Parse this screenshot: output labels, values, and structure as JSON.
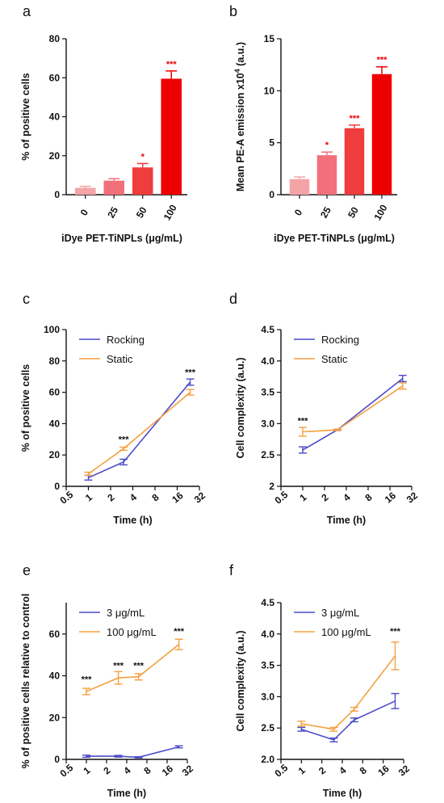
{
  "chart_data": [
    {
      "id": "a",
      "panel_label": "a",
      "type": "bar",
      "categories": [
        "0",
        "25",
        "50",
        "100"
      ],
      "values": [
        3.5,
        7.2,
        14,
        59.5
      ],
      "errors": [
        0.8,
        1.0,
        2.0,
        4.0
      ],
      "significance": [
        "",
        "",
        "*",
        "***"
      ],
      "bar_colors": [
        "#f4a3a6",
        "#f2707a",
        "#ef3c3c",
        "#ee0000"
      ],
      "ylabel": "% of positive cells",
      "xlabel": "iDye PET-TiNPLs (μg/mL)",
      "ylim": [
        0,
        80
      ],
      "yticks": [
        "0",
        "20",
        "40",
        "60",
        "80"
      ]
    },
    {
      "id": "b",
      "panel_label": "b",
      "type": "bar",
      "categories": [
        "0",
        "25",
        "50",
        "100"
      ],
      "values": [
        1.5,
        3.8,
        6.4,
        11.6
      ],
      "errors": [
        0.2,
        0.3,
        0.3,
        0.7
      ],
      "significance": [
        "",
        "*",
        "***",
        "***"
      ],
      "bar_colors": [
        "#f4a3a6",
        "#f2707a",
        "#ef3c3c",
        "#ee0000"
      ],
      "ylabel_main": "Mean PE-A emission x10",
      "ylabel_sup": "4",
      "ylabel_unit": " (a.u.)",
      "xlabel": "iDye PET-TiNPLs (μg/mL)",
      "ylim": [
        0,
        15
      ],
      "yticks": [
        "0",
        "5",
        "10",
        "15"
      ]
    },
    {
      "id": "c",
      "panel_label": "c",
      "type": "line",
      "x_scale": "log2",
      "xlim": [
        0.5,
        32
      ],
      "xticks": [
        "0.5",
        "1",
        "2",
        "4",
        "8",
        "16",
        "32"
      ],
      "ylim": [
        0,
        100
      ],
      "yticks": [
        "0",
        "20",
        "40",
        "60",
        "80",
        "100"
      ],
      "xlabel": "Time (h)",
      "ylabel": "% of positive cells",
      "legend": "top-left",
      "series": [
        {
          "name": "Rocking",
          "color": "#4b4bc8",
          "x": [
            1,
            3,
            24
          ],
          "y": [
            5.5,
            15.5,
            66.5
          ],
          "err": [
            1.5,
            1.8,
            2.0
          ]
        },
        {
          "name": "Static",
          "color": "#f5a040",
          "x": [
            1,
            3,
            24
          ],
          "y": [
            8.0,
            24.0,
            60.0
          ],
          "err": [
            1.0,
            1.0,
            1.8
          ]
        }
      ],
      "annotations": [
        {
          "x": 3,
          "y": 28,
          "text": "***"
        },
        {
          "x": 24,
          "y": 71,
          "text": "***"
        }
      ]
    },
    {
      "id": "d",
      "panel_label": "d",
      "type": "line",
      "x_scale": "log2",
      "xlim": [
        0.5,
        32
      ],
      "xticks": [
        "0.5",
        "1",
        "2",
        "4",
        "8",
        "16",
        "32"
      ],
      "ylim": [
        2,
        4.5
      ],
      "yticks": [
        "2",
        "2.5",
        "3.0",
        "3.5",
        "4.0",
        "4.5"
      ],
      "xlabel": "Time (h)",
      "ylabel": "Cell complexity (a.u.)",
      "legend": "top-left",
      "series": [
        {
          "name": "Rocking",
          "color": "#4b4bc8",
          "x": [
            1,
            3,
            24
          ],
          "y": [
            2.58,
            2.9,
            3.72
          ],
          "err": [
            0.05,
            0.01,
            0.05
          ]
        },
        {
          "name": "Static",
          "color": "#f5a040",
          "x": [
            1,
            3,
            24
          ],
          "y": [
            2.87,
            2.9,
            3.6
          ],
          "err": [
            0.07,
            0.01,
            0.05
          ]
        }
      ],
      "annotations": [
        {
          "x": 1,
          "y": 3.0,
          "text": "***"
        }
      ]
    },
    {
      "id": "e",
      "panel_label": "e",
      "type": "line",
      "x_scale": "log2",
      "xlim": [
        0.5,
        32
      ],
      "xticks": [
        "0.5",
        "1",
        "2",
        "4",
        "8",
        "16",
        "32"
      ],
      "ylim": [
        0,
        75
      ],
      "yticks": [
        "0",
        "20",
        "40",
        "60"
      ],
      "xlabel": "Time (h)",
      "ylabel": "% of positive cells relative to control",
      "legend": "top-left",
      "series": [
        {
          "name": "3 μg/mL",
          "color": "#4b4bc8",
          "x": [
            1,
            3,
            6,
            24
          ],
          "y": [
            1.5,
            1.5,
            1.0,
            6.0
          ],
          "err": [
            0.5,
            0.4,
            0.3,
            0.5
          ]
        },
        {
          "name": "100 μg/mL",
          "color": "#f5a040",
          "x": [
            1,
            3,
            6,
            24
          ],
          "y": [
            32.5,
            39.0,
            39.5,
            55.0
          ],
          "err": [
            1.5,
            3.0,
            1.5,
            2.5
          ]
        }
      ],
      "annotations": [
        {
          "x": 1,
          "y": 37,
          "text": "***"
        },
        {
          "x": 3,
          "y": 43.5,
          "text": "***"
        },
        {
          "x": 6,
          "y": 43.5,
          "text": "***"
        },
        {
          "x": 24,
          "y": 60,
          "text": "***"
        }
      ]
    },
    {
      "id": "f",
      "panel_label": "f",
      "type": "line",
      "x_scale": "log2",
      "xlim": [
        0.5,
        32
      ],
      "xticks": [
        "0.5",
        "1",
        "2",
        "4",
        "8",
        "16",
        "32"
      ],
      "ylim": [
        2,
        4.5
      ],
      "yticks": [
        "2.0",
        "2.5",
        "3.0",
        "3.5",
        "4.0",
        "4.5"
      ],
      "xlabel": "Time (h)",
      "ylabel": "Cell complexity (a.u.)",
      "legend": "top-left",
      "series": [
        {
          "name": "3 μg/mL",
          "color": "#4b4bc8",
          "x": [
            1,
            3,
            6,
            24
          ],
          "y": [
            2.48,
            2.31,
            2.63,
            2.93
          ],
          "err": [
            0.03,
            0.03,
            0.03,
            0.12
          ]
        },
        {
          "name": "100 μg/mL",
          "color": "#f5a040",
          "x": [
            1,
            3,
            6,
            24
          ],
          "y": [
            2.57,
            2.48,
            2.8,
            3.65
          ],
          "err": [
            0.04,
            0.03,
            0.03,
            0.22
          ]
        }
      ],
      "annotations": [
        {
          "x": 24,
          "y": 4.0,
          "text": "***"
        }
      ]
    }
  ]
}
